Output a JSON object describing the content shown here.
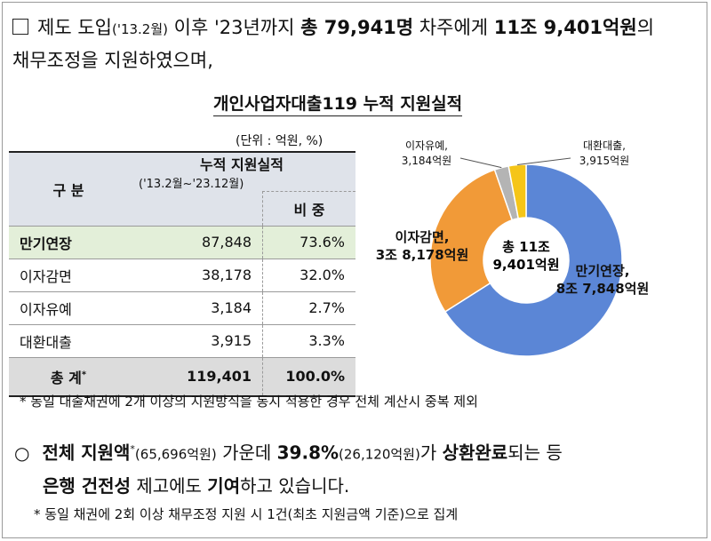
{
  "intro": {
    "box": "□",
    "t1": "제도 도입",
    "t1s": "('13.2월)",
    "t2": " 이후 '23년까지 ",
    "t3": "총 79,941명",
    "t4": " 차주에게 ",
    "t5": "11조 9,401억원",
    "t6": "의",
    "line2": "채무조정을 지원하였으며,"
  },
  "chart_title": "개인사업자대출119 누적 지원실적",
  "unit": "(단위 : 억원, %)",
  "table": {
    "h_category": "구   분",
    "h_cumulative": "누적 지원실적",
    "h_period": "('13.2월~'23.12월)",
    "h_share": "비   중",
    "rows": [
      {
        "label": "만기연장",
        "value": "87,848",
        "pct": "73.6%"
      },
      {
        "label": "이자감면",
        "value": "38,178",
        "pct": "32.0%"
      },
      {
        "label": "이자유예",
        "value": "3,184",
        "pct": "2.7%"
      },
      {
        "label": "대환대출",
        "value": "3,915",
        "pct": "3.3%"
      }
    ],
    "total": {
      "label": "총   계",
      "mark": "*",
      "value": "119,401",
      "pct": "100.0%"
    }
  },
  "chart_data": {
    "type": "pie",
    "center_line1": "총 11조",
    "center_line2": "9,401억원",
    "slices": [
      {
        "name": "만기연장",
        "value": 87848,
        "label_line1": "만기연장,",
        "label_line2": "8조 7,848억원",
        "color": "#5b86d6"
      },
      {
        "name": "이자감면",
        "value": 38178,
        "label_line1": "이자감면,",
        "label_line2": "3조 8,178억원",
        "color": "#f19a38"
      },
      {
        "name": "이자유예",
        "value": 3184,
        "label_line1": "이자유예,",
        "label_line2": "3,184억원",
        "color": "#b4b4b4"
      },
      {
        "name": "대환대출",
        "value": 3915,
        "label_line1": "대환대출,",
        "label_line2": "3,915억원",
        "color": "#f5c518"
      }
    ]
  },
  "note1": "* 동일 대출채권에 2개 이상의 지원방식을 동시 적용한 경우 전체 계산시 중복 제외",
  "para2": {
    "bullet": "○",
    "a": "전체 지원액",
    "a_sup": "*",
    "b": "(65,696억원)",
    "c": " 가운데 ",
    "d": "39.8%",
    "e": "(26,120억원)",
    "f": "가 ",
    "g": "상환완료",
    "h": "되는 등",
    "line2_a": "은행 건전성",
    "line2_b": " 제고에도 ",
    "line2_c": "기여",
    "line2_d": "하고 있습니다."
  },
  "note2": "* 동일 채권에 2회 이상 채무조정 지원 시 1건(최초 지원금액 기준)으로 집계"
}
